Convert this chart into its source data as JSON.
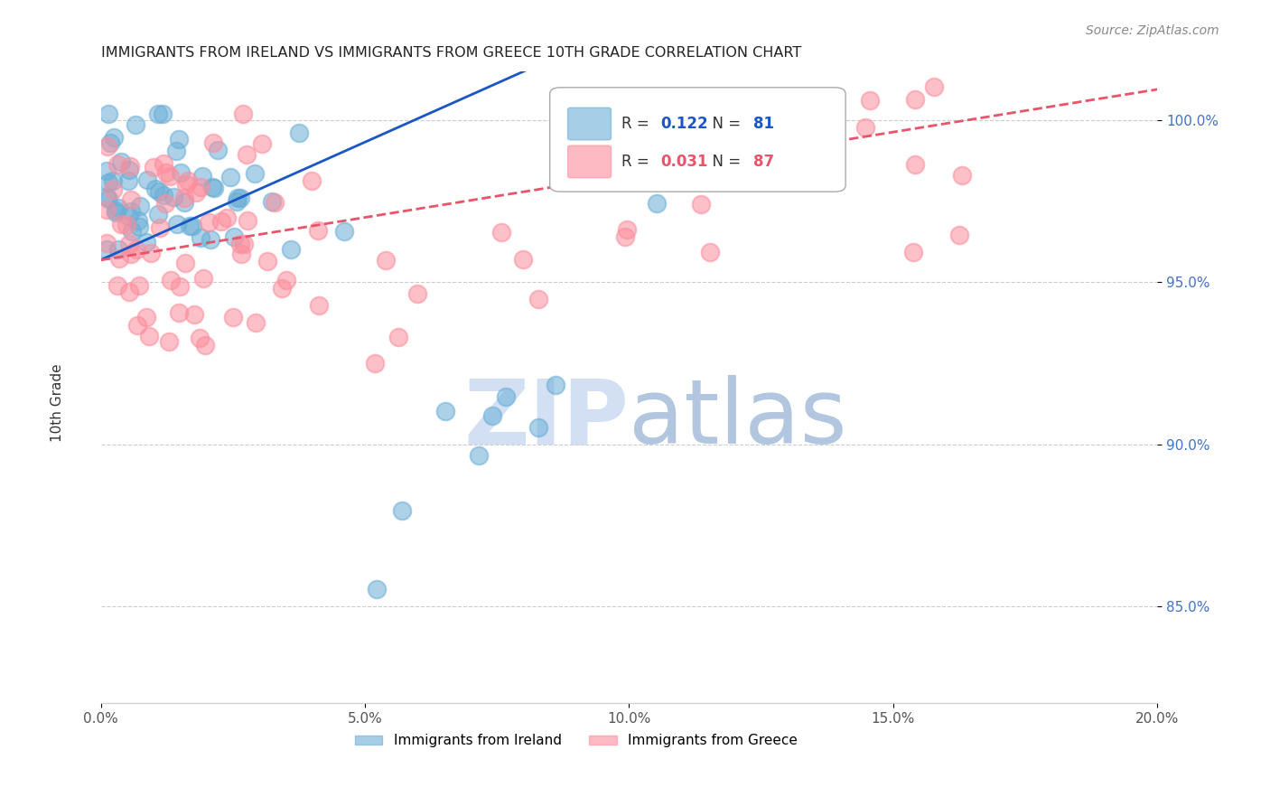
{
  "title": "IMMIGRANTS FROM IRELAND VS IMMIGRANTS FROM GREECE 10TH GRADE CORRELATION CHART",
  "source": "Source: ZipAtlas.com",
  "xlabel_ticks": [
    "0.0%",
    "5.0%",
    "10.0%",
    "15.0%",
    "20.0%"
  ],
  "xlabel_tick_vals": [
    0.0,
    0.05,
    0.1,
    0.15,
    0.2
  ],
  "ylabel_ticks": [
    "85.0%",
    "90.0%",
    "95.0%",
    "100.0%"
  ],
  "ylabel_tick_vals": [
    0.85,
    0.9,
    0.95,
    1.0
  ],
  "ylabel_label": "10th Grade",
  "legend_ireland": "Immigrants from Ireland",
  "legend_greece": "Immigrants from Greece",
  "R_ireland": 0.122,
  "N_ireland": 81,
  "R_greece": 0.031,
  "N_greece": 87,
  "color_ireland": "#6baed6",
  "color_greece": "#fc8d9c",
  "trendline_ireland_color": "#1a56c4",
  "trendline_greece_color": "#e8556a",
  "watermark_zip": "ZIP",
  "watermark_atlas": "atlas",
  "watermark_color_zip": "#c8d8f0",
  "watermark_color_atlas": "#a0b8d8",
  "xlim": [
    0.0,
    0.2
  ],
  "ylim": [
    0.82,
    1.015
  ],
  "legend_R_color_ireland": "#1a56c4",
  "legend_N_color_ireland": "#1a56c4",
  "legend_R_color_greece": "#e8556a",
  "legend_N_color_greece": "#e8556a"
}
